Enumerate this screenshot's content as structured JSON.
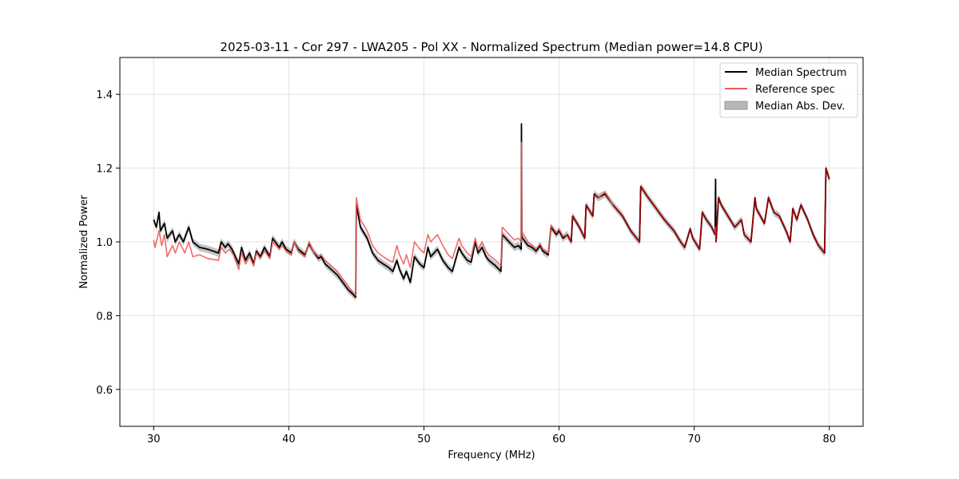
{
  "chart_data": {
    "type": "line",
    "title": "2025-03-11 - Cor 297 - LWA205 - Pol XX - Normalized Spectrum (Median power=14.8 CPU)",
    "xlabel": "Frequency (MHz)",
    "ylabel": "Normalized Power",
    "xlim": [
      27.5,
      82.5
    ],
    "ylim": [
      0.5,
      1.5
    ],
    "xticks": [
      30,
      40,
      50,
      60,
      70,
      80
    ],
    "yticks": [
      0.6,
      0.8,
      1.0,
      1.2,
      1.4
    ],
    "xtick_labels": [
      "30",
      "40",
      "50",
      "60",
      "70",
      "80"
    ],
    "ytick_labels": [
      "0.6",
      "0.8",
      "1.0",
      "1.2",
      "1.4"
    ],
    "grid": true,
    "legend_position": "top-right",
    "legend": [
      "Median Spectrum",
      "Reference spec",
      "Median Abs. Dev."
    ],
    "colors": {
      "median": "#000000",
      "reference": "#f05a5a",
      "mad": "#b8b8b8",
      "overlap": "#8b0000"
    },
    "series": [
      {
        "name": "Median Spectrum",
        "x": [
          30.0,
          30.2,
          30.4,
          30.5,
          30.8,
          31.0,
          31.4,
          31.6,
          31.9,
          32.2,
          32.6,
          32.9,
          33.4,
          34.0,
          34.8,
          35.0,
          35.3,
          35.5,
          35.8,
          36.3,
          36.5,
          36.8,
          37.1,
          37.4,
          37.6,
          37.9,
          38.2,
          38.6,
          38.8,
          39.3,
          39.5,
          39.8,
          40.2,
          40.4,
          40.7,
          41.2,
          41.5,
          41.8,
          42.2,
          42.4,
          42.7,
          43.0,
          43.3,
          43.6,
          44.0,
          44.4,
          44.7,
          44.95,
          45.0,
          45.3,
          45.8,
          46.2,
          46.6,
          47.0,
          47.4,
          47.7,
          48.0,
          48.2,
          48.5,
          48.7,
          49.0,
          49.3,
          49.7,
          50.0,
          50.3,
          50.5,
          51.0,
          51.4,
          51.8,
          52.1,
          52.6,
          52.8,
          53.2,
          53.5,
          53.8,
          54.0,
          54.3,
          54.6,
          54.8,
          55.3,
          55.7,
          55.8,
          56.3,
          56.7,
          57.0,
          57.2,
          57.22,
          57.25,
          57.3,
          57.7,
          58.0,
          58.3,
          58.6,
          58.8,
          59.2,
          59.4,
          59.8,
          60.0,
          60.3,
          60.6,
          60.9,
          61.0,
          61.5,
          61.9,
          62.0,
          62.5,
          62.6,
          62.9,
          63.4,
          64.0,
          64.7,
          65.3,
          65.95,
          66.05,
          66.6,
          67.2,
          67.8,
          68.5,
          69.0,
          69.3,
          69.7,
          69.9,
          70.4,
          70.6,
          70.9,
          71.3,
          71.55,
          71.58,
          71.62,
          71.8,
          72.0,
          72.5,
          73.0,
          73.5,
          73.7,
          74.2,
          74.5,
          74.6,
          75.2,
          75.5,
          75.9,
          76.3,
          76.8,
          77.1,
          77.3,
          77.6,
          77.9,
          78.4,
          78.8,
          79.2,
          79.65,
          79.75,
          80.0
        ],
        "values": [
          1.06,
          1.04,
          1.08,
          1.03,
          1.05,
          1.01,
          1.03,
          1.0,
          1.02,
          1.0,
          1.04,
          1.0,
          0.985,
          0.98,
          0.97,
          1.0,
          0.985,
          0.995,
          0.98,
          0.94,
          0.985,
          0.95,
          0.97,
          0.94,
          0.975,
          0.96,
          0.985,
          0.96,
          1.01,
          0.985,
          1.0,
          0.98,
          0.97,
          1.0,
          0.98,
          0.965,
          0.995,
          0.975,
          0.955,
          0.96,
          0.94,
          0.93,
          0.92,
          0.91,
          0.89,
          0.87,
          0.86,
          0.85,
          1.1,
          1.04,
          1.01,
          0.97,
          0.95,
          0.94,
          0.93,
          0.92,
          0.95,
          0.925,
          0.9,
          0.92,
          0.89,
          0.96,
          0.94,
          0.93,
          0.985,
          0.96,
          0.98,
          0.95,
          0.93,
          0.92,
          0.985,
          0.97,
          0.95,
          0.945,
          1.0,
          0.97,
          0.985,
          0.96,
          0.95,
          0.935,
          0.92,
          1.02,
          1.0,
          0.985,
          0.99,
          0.98,
          1.32,
          1.01,
          1.01,
          0.99,
          0.985,
          0.975,
          0.99,
          0.975,
          0.965,
          1.04,
          1.02,
          1.03,
          1.01,
          1.02,
          1.0,
          1.07,
          1.04,
          1.01,
          1.1,
          1.07,
          1.13,
          1.12,
          1.13,
          1.1,
          1.07,
          1.03,
          1.0,
          1.15,
          1.12,
          1.09,
          1.06,
          1.03,
          1.0,
          0.985,
          1.035,
          1.01,
          0.98,
          1.08,
          1.06,
          1.04,
          1.02,
          1.17,
          1.0,
          1.12,
          1.1,
          1.07,
          1.04,
          1.06,
          1.02,
          1.0,
          1.12,
          1.09,
          1.05,
          1.12,
          1.08,
          1.07,
          1.03,
          1.0,
          1.09,
          1.06,
          1.1,
          1.06,
          1.02,
          0.99,
          0.97,
          1.2,
          1.17
        ]
      },
      {
        "name": "Reference spec",
        "x": [
          30.0,
          30.1,
          30.4,
          30.6,
          30.8,
          31.0,
          31.4,
          31.6,
          31.9,
          32.3,
          32.6,
          32.9,
          33.4,
          34.0,
          34.8,
          35.0,
          35.3,
          35.6,
          35.9,
          36.3,
          36.5,
          36.8,
          37.1,
          37.4,
          37.6,
          37.9,
          38.2,
          38.6,
          38.8,
          39.3,
          39.5,
          39.8,
          40.2,
          40.4,
          40.7,
          41.2,
          41.5,
          41.8,
          42.2,
          42.4,
          42.7,
          43.0,
          43.3,
          43.6,
          44.0,
          44.4,
          44.7,
          44.95,
          45.0,
          45.3,
          45.8,
          46.2,
          46.6,
          47.0,
          47.4,
          47.7,
          48.0,
          48.2,
          48.5,
          48.7,
          49.0,
          49.3,
          49.7,
          50.0,
          50.3,
          50.5,
          51.0,
          51.4,
          51.8,
          52.1,
          52.6,
          52.8,
          53.2,
          53.5,
          53.8,
          54.0,
          54.3,
          54.6,
          54.8,
          55.3,
          55.7,
          55.8,
          56.3,
          56.7,
          57.0,
          57.2,
          57.22,
          57.25,
          57.3,
          57.7,
          58.0,
          58.3,
          58.6,
          58.8,
          59.2,
          59.4,
          59.8,
          60.0,
          60.3,
          60.6,
          60.9,
          61.0,
          61.5,
          61.9,
          62.0,
          62.5,
          62.6,
          62.9,
          63.4,
          64.0,
          64.7,
          65.3,
          65.95,
          66.05,
          66.6,
          67.2,
          67.8,
          68.5,
          69.0,
          69.3,
          69.7,
          69.9,
          70.4,
          70.6,
          70.9,
          71.3,
          71.55,
          71.58,
          71.62,
          71.8,
          72.0,
          72.5,
          73.0,
          73.5,
          73.7,
          74.2,
          74.5,
          74.6,
          75.2,
          75.5,
          75.9,
          76.3,
          76.8,
          77.1,
          77.3,
          77.6,
          77.9,
          78.4,
          78.8,
          79.2,
          79.65,
          79.75,
          80.0
        ],
        "values": [
          1.005,
          0.985,
          1.03,
          0.99,
          1.02,
          0.96,
          0.99,
          0.97,
          1.0,
          0.97,
          1.0,
          0.96,
          0.965,
          0.955,
          0.95,
          0.985,
          0.97,
          0.98,
          0.965,
          0.925,
          0.97,
          0.94,
          0.96,
          0.935,
          0.97,
          0.955,
          0.975,
          0.955,
          1.0,
          0.98,
          0.99,
          0.975,
          0.965,
          1.0,
          0.975,
          0.96,
          1.0,
          0.975,
          0.96,
          0.965,
          0.95,
          0.94,
          0.93,
          0.92,
          0.9,
          0.88,
          0.865,
          0.855,
          1.12,
          1.06,
          1.03,
          0.99,
          0.97,
          0.96,
          0.95,
          0.945,
          0.99,
          0.965,
          0.94,
          0.965,
          0.93,
          1.0,
          0.98,
          0.97,
          1.02,
          1.0,
          1.02,
          0.99,
          0.965,
          0.955,
          1.01,
          0.99,
          0.97,
          0.96,
          1.01,
          0.98,
          1.0,
          0.975,
          0.965,
          0.95,
          0.935,
          1.04,
          1.02,
          1.005,
          1.01,
          1.0,
          1.27,
          1.02,
          1.025,
          1.0,
          0.99,
          0.98,
          0.995,
          0.98,
          0.97,
          1.045,
          1.025,
          1.035,
          1.015,
          1.02,
          1.0,
          1.07,
          1.04,
          1.01,
          1.1,
          1.07,
          1.13,
          1.12,
          1.135,
          1.1,
          1.07,
          1.03,
          1.0,
          1.15,
          1.12,
          1.09,
          1.06,
          1.03,
          1.0,
          0.985,
          1.035,
          1.01,
          0.98,
          1.08,
          1.06,
          1.04,
          1.02,
          1.04,
          1.0,
          1.12,
          1.1,
          1.07,
          1.04,
          1.06,
          1.02,
          1.0,
          1.12,
          1.09,
          1.05,
          1.12,
          1.08,
          1.07,
          1.03,
          1.0,
          1.09,
          1.06,
          1.1,
          1.06,
          1.02,
          0.99,
          0.97,
          1.2,
          1.17
        ]
      }
    ],
    "mad_halfwidth": 0.01
  }
}
